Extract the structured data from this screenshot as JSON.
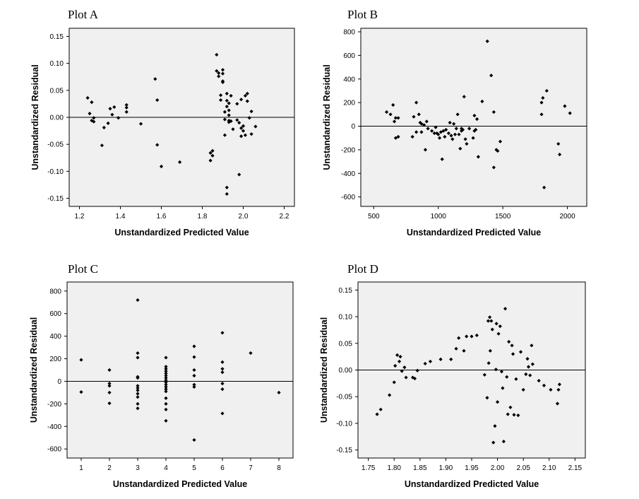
{
  "chart_data": [
    {
      "id": "A",
      "type": "scatter",
      "title": "Plot A",
      "xlabel": "Unstandardized Predicted Value",
      "ylabel": "Unstandardized Residual",
      "xlim": [
        1.15,
        2.25
      ],
      "ylim": [
        -0.165,
        0.165
      ],
      "xticks": [
        1.2,
        1.4,
        1.6,
        1.8,
        2.0,
        2.2
      ],
      "xtick_labels": [
        "1.2",
        "1.4",
        "1.6",
        "1.8",
        "2.0",
        "2.2"
      ],
      "yticks": [
        0.15,
        0.1,
        0.05,
        0.0,
        -0.05,
        -0.1,
        -0.15
      ],
      "ytick_labels": [
        "0.15",
        "0.10",
        "0.05",
        "0.00",
        "-0.05",
        "-0.10",
        "-0.15"
      ],
      "reference_line_y": 0,
      "points": [
        [
          1.24,
          0.036
        ],
        [
          1.25,
          0.007
        ],
        [
          1.26,
          0.028
        ],
        [
          1.26,
          -0.006
        ],
        [
          1.27,
          -0.001
        ],
        [
          1.27,
          -0.008
        ],
        [
          1.31,
          -0.052
        ],
        [
          1.32,
          -0.019
        ],
        [
          1.34,
          -0.011
        ],
        [
          1.35,
          0.016
        ],
        [
          1.36,
          0.005
        ],
        [
          1.37,
          0.019
        ],
        [
          1.39,
          -0.001
        ],
        [
          1.43,
          0.01
        ],
        [
          1.43,
          0.018
        ],
        [
          1.43,
          0.023
        ],
        [
          1.5,
          -0.012
        ],
        [
          1.57,
          0.071
        ],
        [
          1.58,
          0.032
        ],
        [
          1.58,
          -0.051
        ],
        [
          1.6,
          -0.091
        ],
        [
          1.69,
          -0.083
        ],
        [
          1.84,
          -0.08
        ],
        [
          1.84,
          -0.066
        ],
        [
          1.85,
          -0.062
        ],
        [
          1.85,
          -0.071
        ],
        [
          1.87,
          0.116
        ],
        [
          1.87,
          0.086
        ],
        [
          1.88,
          0.082
        ],
        [
          1.88,
          0.076
        ],
        [
          1.89,
          0.032
        ],
        [
          1.89,
          0.041
        ],
        [
          1.9,
          0.088
        ],
        [
          1.9,
          0.067
        ],
        [
          1.9,
          0.081
        ],
        [
          1.9,
          0.065
        ],
        [
          1.91,
          -0.004
        ],
        [
          1.91,
          -0.033
        ],
        [
          1.91,
          0.01
        ],
        [
          1.92,
          0.044
        ],
        [
          1.92,
          0.031
        ],
        [
          1.92,
          -0.13
        ],
        [
          1.92,
          -0.142
        ],
        [
          1.92,
          0.02
        ],
        [
          1.93,
          0.004
        ],
        [
          1.93,
          -0.006
        ],
        [
          1.93,
          0.026
        ],
        [
          1.93,
          0.013
        ],
        [
          1.93,
          -0.009
        ],
        [
          1.94,
          0.04
        ],
        [
          1.94,
          -0.007
        ],
        [
          1.95,
          -0.022
        ],
        [
          1.97,
          0.025
        ],
        [
          1.97,
          -0.005
        ],
        [
          1.98,
          -0.106
        ],
        [
          1.98,
          -0.01
        ],
        [
          1.99,
          -0.035
        ],
        [
          1.99,
          -0.02
        ],
        [
          1.99,
          0.033
        ],
        [
          2.0,
          -0.016
        ],
        [
          2.0,
          -0.025
        ],
        [
          2.01,
          0.04
        ],
        [
          2.01,
          -0.033
        ],
        [
          2.02,
          0.044
        ],
        [
          2.02,
          0.03
        ],
        [
          2.03,
          -0.001
        ],
        [
          2.04,
          0.011
        ],
        [
          2.04,
          -0.031
        ],
        [
          2.06,
          -0.017
        ]
      ]
    },
    {
      "id": "B",
      "type": "scatter",
      "title": "Plot B",
      "xlabel": "Unstandardized Predicted Value",
      "ylabel": "Unstandardized Residual",
      "xlim": [
        400,
        2150
      ],
      "ylim": [
        -680,
        830
      ],
      "xticks": [
        500,
        1000,
        1500,
        2000
      ],
      "xtick_labels": [
        "500",
        "1000",
        "1500",
        "2000"
      ],
      "yticks": [
        800,
        600,
        400,
        200,
        0,
        -200,
        -400,
        -600
      ],
      "ytick_labels": [
        "800",
        "600",
        "400",
        "200",
        "0",
        "-200",
        "-400",
        "-600"
      ],
      "reference_line_y": 0,
      "points": [
        [
          600,
          120
        ],
        [
          630,
          100
        ],
        [
          650,
          180
        ],
        [
          660,
          40
        ],
        [
          670,
          70
        ],
        [
          670,
          -100
        ],
        [
          690,
          70
        ],
        [
          690,
          -90
        ],
        [
          800,
          -90
        ],
        [
          810,
          80
        ],
        [
          830,
          200
        ],
        [
          830,
          -50
        ],
        [
          850,
          100
        ],
        [
          860,
          30
        ],
        [
          870,
          20
        ],
        [
          870,
          -50
        ],
        [
          890,
          10
        ],
        [
          900,
          -200
        ],
        [
          910,
          40
        ],
        [
          920,
          -20
        ],
        [
          950,
          -40
        ],
        [
          970,
          -60
        ],
        [
          980,
          -10
        ],
        [
          990,
          -60
        ],
        [
          1000,
          -70
        ],
        [
          1010,
          -100
        ],
        [
          1020,
          -50
        ],
        [
          1030,
          -280
        ],
        [
          1040,
          -40
        ],
        [
          1050,
          -90
        ],
        [
          1060,
          -30
        ],
        [
          1080,
          -60
        ],
        [
          1090,
          30
        ],
        [
          1100,
          -80
        ],
        [
          1110,
          -110
        ],
        [
          1120,
          20
        ],
        [
          1130,
          -70
        ],
        [
          1140,
          -20
        ],
        [
          1150,
          100
        ],
        [
          1160,
          -70
        ],
        [
          1170,
          -190
        ],
        [
          1180,
          -40
        ],
        [
          1180,
          -20
        ],
        [
          1190,
          -30
        ],
        [
          1200,
          250
        ],
        [
          1210,
          -110
        ],
        [
          1220,
          -150
        ],
        [
          1240,
          -20
        ],
        [
          1270,
          -100
        ],
        [
          1280,
          90
        ],
        [
          1280,
          -40
        ],
        [
          1290,
          -30
        ],
        [
          1300,
          60
        ],
        [
          1310,
          -260
        ],
        [
          1340,
          210
        ],
        [
          1380,
          720
        ],
        [
          1410,
          430
        ],
        [
          1430,
          -350
        ],
        [
          1430,
          120
        ],
        [
          1450,
          -200
        ],
        [
          1460,
          -210
        ],
        [
          1480,
          -130
        ],
        [
          1800,
          100
        ],
        [
          1800,
          200
        ],
        [
          1810,
          240
        ],
        [
          1820,
          -520
        ],
        [
          1840,
          300
        ],
        [
          1930,
          -150
        ],
        [
          1940,
          -240
        ],
        [
          1980,
          170
        ],
        [
          2020,
          110
        ]
      ]
    },
    {
      "id": "C",
      "type": "scatter",
      "title": "Plot C",
      "xlabel": "Unstandardized Predicted Value",
      "ylabel": "Unstandardized Residual",
      "xlim": [
        0.5,
        8.5
      ],
      "ylim": [
        -680,
        880
      ],
      "xticks": [
        1,
        2,
        3,
        4,
        5,
        6,
        7,
        8
      ],
      "xtick_labels": [
        "1",
        "2",
        "3",
        "4",
        "5",
        "6",
        "7",
        "8"
      ],
      "yticks": [
        800,
        600,
        400,
        200,
        0,
        -200,
        -400,
        -600
      ],
      "ytick_labels": [
        "800",
        "600",
        "400",
        "200",
        "0",
        "-200",
        "-400",
        "-600"
      ],
      "reference_line_y": 0,
      "points": [
        [
          1,
          190
        ],
        [
          1,
          -95
        ],
        [
          2,
          100
        ],
        [
          2,
          -20
        ],
        [
          2,
          -40
        ],
        [
          2,
          -100
        ],
        [
          2,
          -195
        ],
        [
          3,
          720
        ],
        [
          3,
          250
        ],
        [
          3,
          210
        ],
        [
          3,
          40
        ],
        [
          3,
          30
        ],
        [
          3,
          -40
        ],
        [
          3,
          -60
        ],
        [
          3,
          -80
        ],
        [
          3,
          -110
        ],
        [
          3,
          -140
        ],
        [
          3,
          -200
        ],
        [
          3,
          -240
        ],
        [
          4,
          210
        ],
        [
          4,
          130
        ],
        [
          4,
          110
        ],
        [
          4,
          90
        ],
        [
          4,
          70
        ],
        [
          4,
          50
        ],
        [
          4,
          30
        ],
        [
          4,
          10
        ],
        [
          4,
          -10
        ],
        [
          4,
          -30
        ],
        [
          4,
          -50
        ],
        [
          4,
          -70
        ],
        [
          4,
          -90
        ],
        [
          4,
          -150
        ],
        [
          4,
          -200
        ],
        [
          4,
          -250
        ],
        [
          4,
          -350
        ],
        [
          5,
          310
        ],
        [
          5,
          215
        ],
        [
          5,
          100
        ],
        [
          5,
          50
        ],
        [
          5,
          -30
        ],
        [
          5,
          -50
        ],
        [
          5,
          -520
        ],
        [
          6,
          430
        ],
        [
          6,
          170
        ],
        [
          6,
          110
        ],
        [
          6,
          80
        ],
        [
          6,
          -20
        ],
        [
          6,
          -70
        ],
        [
          6,
          -285
        ],
        [
          7,
          250
        ],
        [
          8,
          -100
        ]
      ]
    },
    {
      "id": "D",
      "type": "scatter",
      "title": "Plot D",
      "xlabel": "Unstandardized Predicted Value",
      "ylabel": "Unstandardized Residual",
      "xlim": [
        1.73,
        2.17
      ],
      "ylim": [
        -0.165,
        0.165
      ],
      "xticks": [
        1.75,
        1.8,
        1.85,
        1.9,
        1.95,
        2.0,
        2.05,
        2.1,
        2.15
      ],
      "xtick_labels": [
        "1.75",
        "1.80",
        "1.85",
        "1.90",
        "1.95",
        "2.00",
        "2.05",
        "2.10",
        "2.15"
      ],
      "yticks": [
        0.15,
        0.1,
        0.05,
        0.0,
        -0.05,
        -0.1,
        -0.15
      ],
      "ytick_labels": [
        "0.15",
        "0.10",
        "0.05",
        "0.00",
        "-0.05",
        "-0.10",
        "-0.15"
      ],
      "reference_line_y": 0,
      "points": [
        [
          1.767,
          -0.083
        ],
        [
          1.774,
          -0.074
        ],
        [
          1.791,
          -0.047
        ],
        [
          1.8,
          -0.023
        ],
        [
          1.802,
          0.008
        ],
        [
          1.806,
          0.028
        ],
        [
          1.81,
          0.016
        ],
        [
          1.812,
          0.025
        ],
        [
          1.815,
          -0.002
        ],
        [
          1.82,
          0.005
        ],
        [
          1.823,
          -0.014
        ],
        [
          1.836,
          -0.014
        ],
        [
          1.84,
          -0.016
        ],
        [
          1.845,
          -0.001
        ],
        [
          1.86,
          0.012
        ],
        [
          1.87,
          0.016
        ],
        [
          1.89,
          0.02
        ],
        [
          1.91,
          0.02
        ],
        [
          1.92,
          0.04
        ],
        [
          1.925,
          0.06
        ],
        [
          1.935,
          0.036
        ],
        [
          1.94,
          0.063
        ],
        [
          1.95,
          0.063
        ],
        [
          1.96,
          0.065
        ],
        [
          1.975,
          -0.009
        ],
        [
          1.98,
          -0.052
        ],
        [
          1.982,
          0.092
        ],
        [
          1.983,
          0.013
        ],
        [
          1.985,
          0.099
        ],
        [
          1.986,
          0.036
        ],
        [
          1.988,
          0.092
        ],
        [
          1.99,
          0.076
        ],
        [
          1.992,
          -0.136
        ],
        [
          1.995,
          -0.105
        ],
        [
          1.997,
          0.001
        ],
        [
          1.998,
          0.087
        ],
        [
          2.0,
          -0.06
        ],
        [
          2.002,
          0.068
        ],
        [
          2.005,
          0.082
        ],
        [
          2.008,
          -0.003
        ],
        [
          2.01,
          -0.034
        ],
        [
          2.012,
          -0.134
        ],
        [
          2.015,
          0.115
        ],
        [
          2.018,
          -0.013
        ],
        [
          2.02,
          -0.083
        ],
        [
          2.022,
          0.053
        ],
        [
          2.025,
          -0.07
        ],
        [
          2.028,
          0.046
        ],
        [
          2.03,
          0.03
        ],
        [
          2.032,
          -0.084
        ],
        [
          2.036,
          -0.017
        ],
        [
          2.04,
          -0.085
        ],
        [
          2.045,
          0.034
        ],
        [
          2.05,
          -0.037
        ],
        [
          2.055,
          -0.008
        ],
        [
          2.058,
          0.021
        ],
        [
          2.06,
          0.006
        ],
        [
          2.063,
          -0.01
        ],
        [
          2.066,
          0.046
        ],
        [
          2.068,
          0.011
        ],
        [
          2.08,
          -0.02
        ],
        [
          2.09,
          -0.029
        ],
        [
          2.103,
          -0.037
        ],
        [
          2.116,
          -0.063
        ],
        [
          2.118,
          -0.037
        ],
        [
          2.12,
          -0.027
        ]
      ]
    }
  ]
}
